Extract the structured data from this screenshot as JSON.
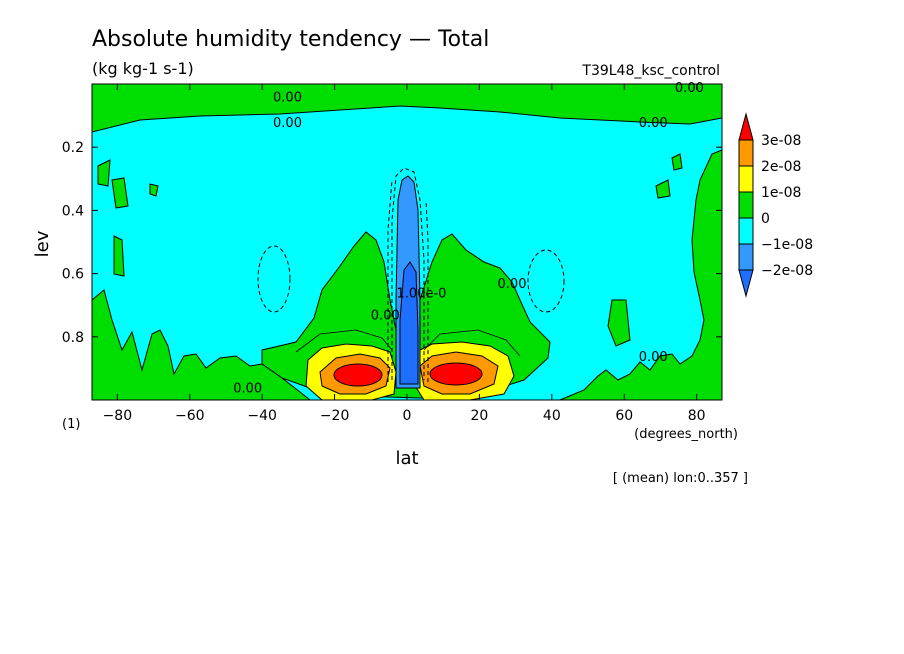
{
  "chart_data": {
    "type": "heatmap",
    "title": "Absolute humidity tendency — Total",
    "units": "(kg kg-1 s-1)",
    "experiment": "T39L48_ksc_control",
    "xlabel": "lat",
    "ylabel": "lev",
    "x_units": "(degrees_north)",
    "y_units": "(1)",
    "averaging_note": "[ (mean) lon:0..357 ]",
    "xlim": [
      -87,
      87
    ],
    "ylim": [
      0,
      1
    ],
    "y_inverted": true,
    "x_ticks": [
      -80,
      -60,
      -40,
      -20,
      0,
      20,
      40,
      60,
      80
    ],
    "x_tick_labels": [
      "−80",
      "−60",
      "−40",
      "−20",
      "0",
      "20",
      "40",
      "60",
      "80"
    ],
    "y_ticks": [
      0.2,
      0.4,
      0.6,
      0.8
    ],
    "y_tick_labels": [
      "0.2",
      "0.4",
      "0.6",
      "0.8"
    ],
    "colorbar": {
      "levels": [
        {
          "label": "3e-08",
          "value": 3e-08,
          "color": "#ff9900"
        },
        {
          "label": "2e-08",
          "value": 2e-08,
          "color": "#ffff00"
        },
        {
          "label": "1e-08",
          "value": 1e-08,
          "color": "#00dd00"
        },
        {
          "label": "0",
          "value": 0,
          "color": "#00ffff"
        },
        {
          "label": "−1e-08",
          "value": -1e-08,
          "color": "#3399ff"
        },
        {
          "label": "−2e-08",
          "value": -2e-08,
          "color": "#3399ff"
        }
      ],
      "upper_extend_color": "#ff0000",
      "lower_extend_color": "#1e6fff"
    },
    "contour_labels": [
      {
        "text": "0.00",
        "lat": -33,
        "lev": 0.04
      },
      {
        "text": "0.00",
        "lat": 78,
        "lev": 0.01
      },
      {
        "text": "0.00",
        "lat": -33,
        "lev": 0.12
      },
      {
        "text": "0.00",
        "lat": 68,
        "lev": 0.12
      },
      {
        "text": "0.00",
        "lat": 29,
        "lev": 0.63
      },
      {
        "text": "0.00",
        "lat": -6,
        "lev": 0.73
      },
      {
        "text": "1.00e-0",
        "lat": 4,
        "lev": 0.66
      },
      {
        "text": "0.00",
        "lat": 68,
        "lev": 0.86
      },
      {
        "text": "0.00",
        "lat": -44,
        "lev": 0.96
      }
    ]
  }
}
